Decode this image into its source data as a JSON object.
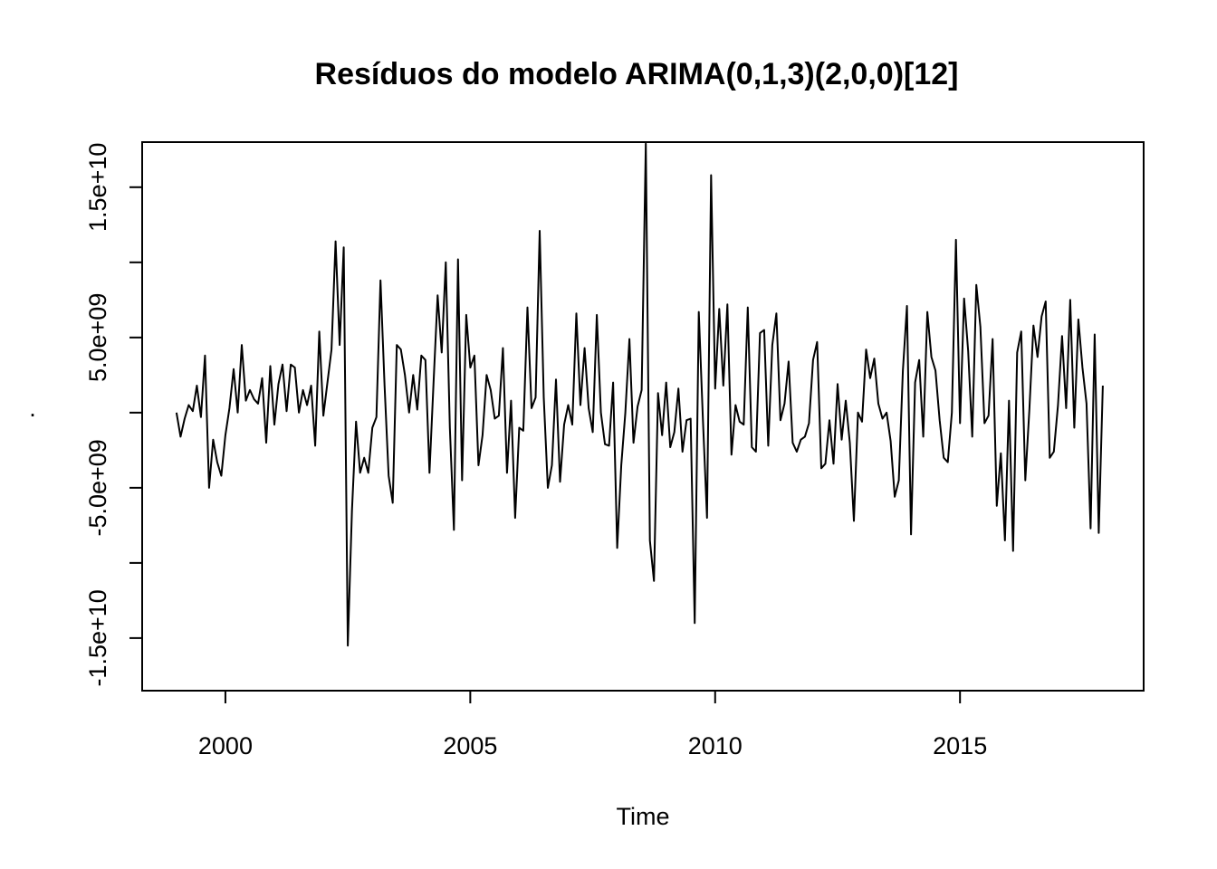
{
  "chart_data": {
    "type": "line",
    "title": "Resíduos do modelo ARIMA(0,1,3)(2,0,0)[12]",
    "xlabel": "Time",
    "ylabel": ".",
    "xlim": [
      1998.3,
      2018.75
    ],
    "ylim": [
      -18500000000.0,
      18000000000.0
    ],
    "x_ticks": [
      2000,
      2005,
      2010,
      2015
    ],
    "x_tick_labels": [
      "2000",
      "2005",
      "2010",
      "2015"
    ],
    "y_ticks": [
      -15000000000.0,
      -10000000000.0,
      -5000000000.0,
      0,
      5000000000.0,
      10000000000.0,
      15000000000.0
    ],
    "y_tick_labels": [
      "-1.5e+10",
      "",
      "-5.0e+09",
      "",
      "5.0e+09",
      "",
      "1.5e+10"
    ],
    "grid": false,
    "legend": "none",
    "line_color": "#000000",
    "series": [
      {
        "x_start": 1999.0,
        "step": 0.08333333,
        "values": [
          0.0,
          -1600000000.0,
          -400000000.0,
          500000000.0,
          100000000.0,
          1800000000.0,
          -300000000.0,
          3800000000.0,
          -5000000000.0,
          -1800000000.0,
          -3300000000.0,
          -4200000000.0,
          -1500000000.0,
          300000000.0,
          2900000000.0,
          0.0,
          4500000000.0,
          800000000.0,
          1500000000.0,
          900000000.0,
          600000000.0,
          2300000000.0,
          -2000000000.0,
          3100000000.0,
          -800000000.0,
          1900000000.0,
          3200000000.0,
          100000000.0,
          3200000000.0,
          3000000000.0,
          0.0,
          1500000000.0,
          500000000.0,
          1800000000.0,
          -2200000000.0,
          5400000000.0,
          -200000000.0,
          2000000000.0,
          4200000000.0,
          11400000000.0,
          4500000000.0,
          11000000000.0,
          -15500000000.0,
          -6500000000.0,
          -600000000.0,
          -4000000000.0,
          -3000000000.0,
          -4000000000.0,
          -1000000000.0,
          -300000000.0,
          8800000000.0,
          1800000000.0,
          -4200000000.0,
          -6000000000.0,
          4500000000.0,
          4200000000.0,
          2500000000.0,
          0.0,
          2500000000.0,
          200000000.0,
          3800000000.0,
          3500000000.0,
          -4000000000.0,
          2000000000.0,
          7800000000.0,
          4000000000.0,
          10000000000.0,
          -1000000000.0,
          -7800000000.0,
          10200000000.0,
          -4500000000.0,
          6500000000.0,
          3000000000.0,
          3800000000.0,
          -3500000000.0,
          -1500000000.0,
          2500000000.0,
          1500000000.0,
          -400000000.0,
          -200000000.0,
          4300000000.0,
          -4000000000.0,
          800000000.0,
          -7000000000.0,
          -1000000000.0,
          -1200000000.0,
          7000000000.0,
          300000000.0,
          1000000000.0,
          12100000000.0,
          1000000000.0,
          -5000000000.0,
          -3500000000.0,
          2200000000.0,
          -4600000000.0,
          -800000000.0,
          500000000.0,
          -800000000.0,
          6600000000.0,
          500000000.0,
          4300000000.0,
          300000000.0,
          -1300000000.0,
          6500000000.0,
          0.0,
          -2100000000.0,
          -2200000000.0,
          2000000000.0,
          -9000000000.0,
          -3500000000.0,
          0.0,
          4900000000.0,
          -2000000000.0,
          400000000.0,
          1500000000.0,
          17900000000.0,
          -8500000000.0,
          -11200000000.0,
          1300000000.0,
          -1500000000.0,
          2000000000.0,
          -2300000000.0,
          -1300000000.0,
          1600000000.0,
          -2600000000.0,
          -500000000.0,
          -400000000.0,
          -14000000000.0,
          6700000000.0,
          -500000000.0,
          -7000000000.0,
          15800000000.0,
          1600000000.0,
          6900000000.0,
          1800000000.0,
          7200000000.0,
          -2800000000.0,
          500000000.0,
          -600000000.0,
          -800000000.0,
          7000000000.0,
          -2300000000.0,
          -2600000000.0,
          5300000000.0,
          5500000000.0,
          -2200000000.0,
          4500000000.0,
          6600000000.0,
          -500000000.0,
          600000000.0,
          3400000000.0,
          -2000000000.0,
          -2600000000.0,
          -1800000000.0,
          -1600000000.0,
          -700000000.0,
          3500000000.0,
          4700000000.0,
          -3700000000.0,
          -3400000000.0,
          -500000000.0,
          -3400000000.0,
          1900000000.0,
          -1800000000.0,
          800000000.0,
          -2000000000.0,
          -7200000000.0,
          0.0,
          -600000000.0,
          4200000000.0,
          2300000000.0,
          3600000000.0,
          600000000.0,
          -400000000.0,
          0.0,
          -1900000000.0,
          -5600000000.0,
          -4500000000.0,
          2800000000.0,
          7100000000.0,
          -8100000000.0,
          2000000000.0,
          3500000000.0,
          -1600000000.0,
          6700000000.0,
          3700000000.0,
          2800000000.0,
          -500000000.0,
          -3000000000.0,
          -3300000000.0,
          0.0,
          11500000000.0,
          -700000000.0,
          7600000000.0,
          4100000000.0,
          -1600000000.0,
          8500000000.0,
          5700000000.0,
          -700000000.0,
          -200000000.0,
          4900000000.0,
          -6200000000.0,
          -2700000000.0,
          -8500000000.0,
          800000000.0,
          -9200000000.0,
          4000000000.0,
          5400000000.0,
          -4500000000.0,
          200000000.0,
          5800000000.0,
          3700000000.0,
          6400000000.0,
          7400000000.0,
          -3000000000.0,
          -2600000000.0,
          500000000.0,
          5100000000.0,
          300000000.0,
          7500000000.0,
          -1000000000.0,
          6200000000.0,
          3000000000.0,
          600000000.0,
          -7700000000.0,
          5200000000.0,
          -8000000000.0,
          1800000000.0
        ]
      }
    ]
  }
}
